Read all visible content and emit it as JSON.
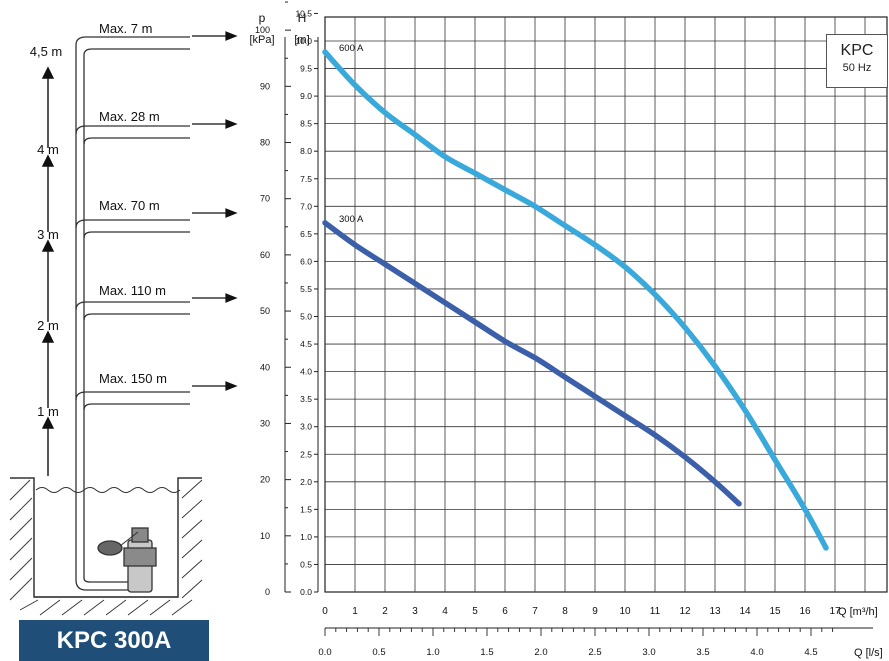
{
  "chart_data": {
    "type": "line",
    "model": "KPC",
    "frequency": "50 Hz",
    "product_badge": "KPC 300A",
    "x_axis": {
      "label": "Q [m³/h]",
      "range": [
        0,
        17
      ],
      "ticks": [
        "0",
        "1",
        "2",
        "3",
        "4",
        "5",
        "6",
        "7",
        "8",
        "9",
        "10",
        "11",
        "12",
        "13",
        "14",
        "15",
        "16",
        "17"
      ]
    },
    "x2_axis": {
      "label": "Q [l/s]",
      "ticks": [
        "0.0",
        "0.5",
        "1.0",
        "1.5",
        "2.0",
        "2.5",
        "3.0",
        "3.5",
        "4.0",
        "4.5"
      ]
    },
    "y_axis_head": {
      "symbol": "H",
      "unit": "[m]",
      "range": [
        0,
        10.5
      ],
      "ticks": [
        "0.0",
        "0.5",
        "1.0",
        "1.5",
        "2.0",
        "2.5",
        "3.0",
        "3.5",
        "4.0",
        "4.5",
        "5.0",
        "5.5",
        "6.0",
        "6.5",
        "7.0",
        "7.5",
        "8.0",
        "8.5",
        "9.0",
        "9.5",
        "10.0",
        "10.5"
      ]
    },
    "y_axis_pressure": {
      "symbol": "p",
      "unit": "[kPa]",
      "ticks": [
        "0",
        "10",
        "20",
        "30",
        "40",
        "50",
        "60",
        "70",
        "80",
        "90",
        "100"
      ]
    },
    "grid": true,
    "series": [
      {
        "name": "600 A",
        "color": "#39a9dc",
        "x": [
          0,
          1,
          2,
          3,
          4,
          5,
          6,
          7,
          8,
          9,
          10,
          11,
          12,
          13,
          14,
          15,
          16,
          16.7
        ],
        "y": [
          9.8,
          9.2,
          8.7,
          8.3,
          7.9,
          7.6,
          7.3,
          7.0,
          6.65,
          6.3,
          5.9,
          5.4,
          4.8,
          4.1,
          3.3,
          2.4,
          1.5,
          0.8
        ]
      },
      {
        "name": "300 A",
        "color": "#3c5faa",
        "x": [
          0,
          1,
          2,
          3,
          4,
          5,
          6,
          7,
          8,
          9,
          10,
          11,
          12,
          13,
          13.8
        ],
        "y": [
          6.7,
          6.3,
          5.95,
          5.6,
          5.25,
          4.9,
          4.55,
          4.25,
          3.9,
          3.55,
          3.2,
          2.85,
          2.45,
          2.0,
          1.6
        ]
      }
    ],
    "installation_diagram": {
      "depth_labels": [
        "1 m",
        "2 m",
        "3 m",
        "4 m",
        "4,5 m"
      ],
      "max_labels": [
        "Max. 150 m",
        "Max. 110 m",
        "Max. 70 m",
        "Max. 28 m",
        "Max. 7 m"
      ]
    }
  }
}
